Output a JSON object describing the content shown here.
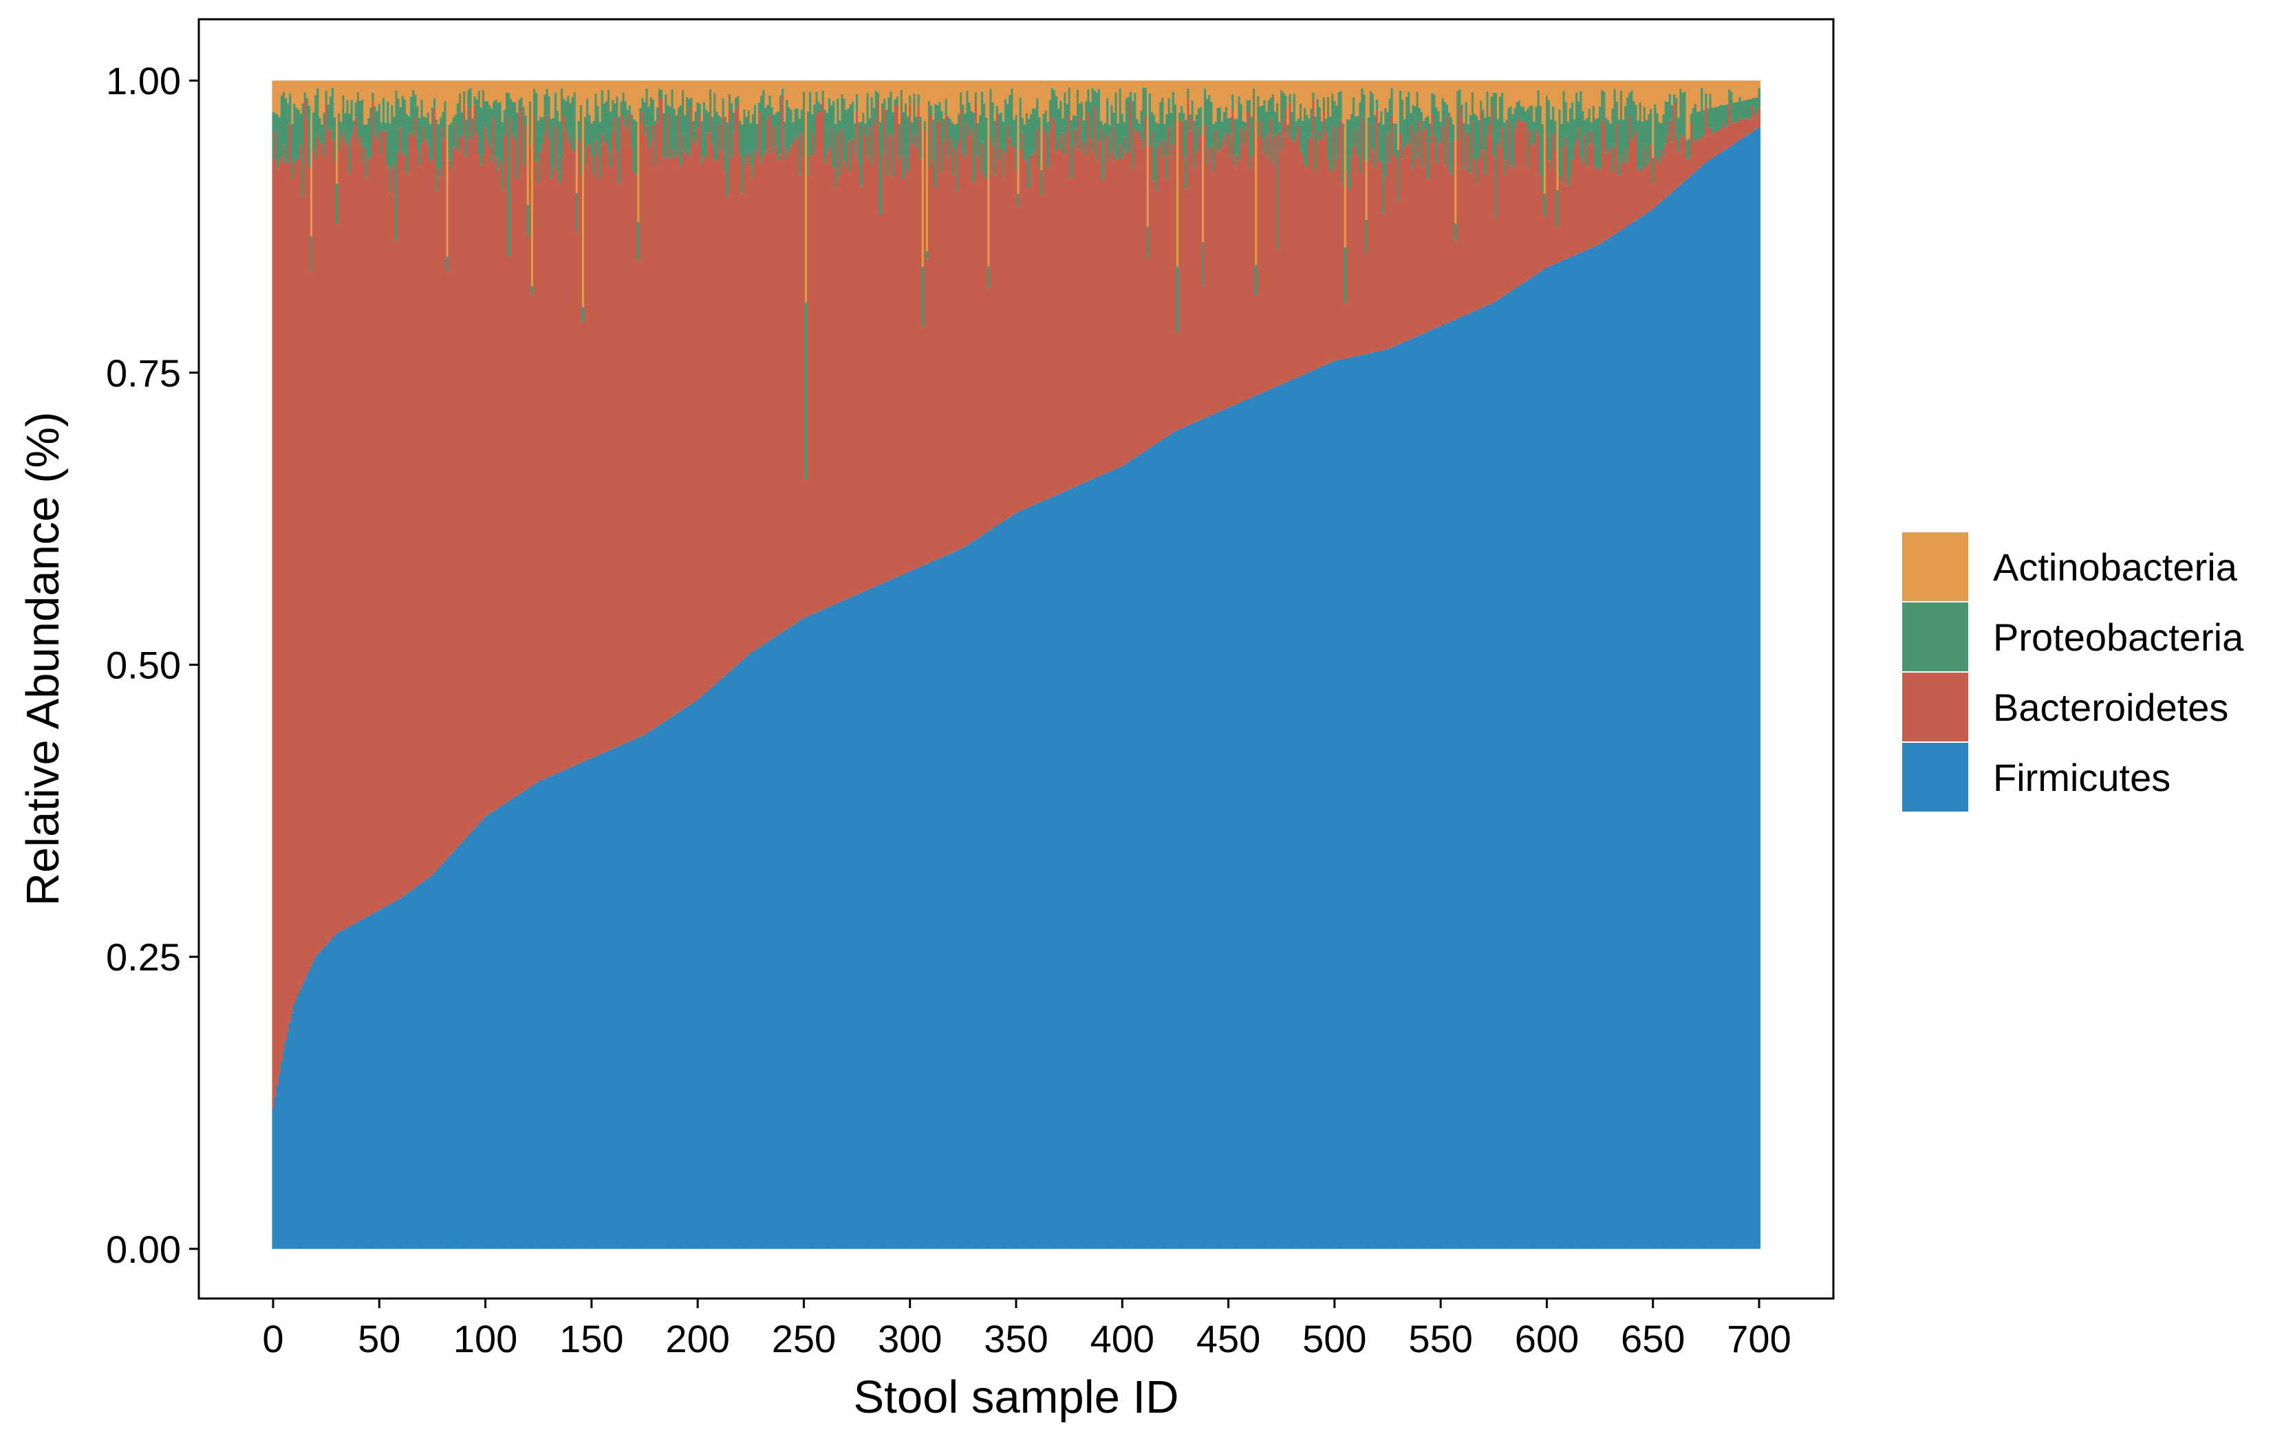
{
  "chart_data": {
    "type": "bar",
    "stacked": true,
    "xlabel": "Stool sample ID",
    "ylabel": "Relative Abundance (%)",
    "xlim": [
      -35,
      735
    ],
    "ylim": [
      -0.0425,
      1.0525
    ],
    "x_ticks": [
      0,
      50,
      100,
      150,
      200,
      250,
      300,
      350,
      400,
      450,
      500,
      550,
      600,
      650,
      700
    ],
    "y_ticks": [
      0.0,
      0.25,
      0.5,
      0.75,
      1.0
    ],
    "y_tick_labels": [
      "0.00",
      "0.25",
      "0.50",
      "0.75",
      "1.00"
    ],
    "n_samples": 701,
    "legend_position": "right",
    "grid": false,
    "series": [
      {
        "name": "Firmicutes",
        "color": "#2E86C1"
      },
      {
        "name": "Bacteroidetes",
        "color": "#C65E4E"
      },
      {
        "name": "Proteobacteria",
        "color": "#4A9670"
      },
      {
        "name": "Actinobacteria",
        "color": "#E49A4C"
      }
    ],
    "legend_order": [
      "Actinobacteria",
      "Proteobacteria",
      "Bacteroidetes",
      "Firmicutes"
    ],
    "firmicutes_profile": {
      "sample": [
        0,
        2,
        5,
        10,
        15,
        20,
        30,
        40,
        50,
        60,
        75,
        100,
        125,
        150,
        175,
        200,
        225,
        250,
        275,
        300,
        325,
        350,
        375,
        400,
        425,
        450,
        475,
        500,
        525,
        550,
        575,
        600,
        625,
        650,
        675,
        700
      ],
      "value": [
        0.12,
        0.14,
        0.17,
        0.21,
        0.23,
        0.25,
        0.27,
        0.28,
        0.29,
        0.3,
        0.32,
        0.37,
        0.4,
        0.42,
        0.44,
        0.47,
        0.51,
        0.54,
        0.56,
        0.58,
        0.6,
        0.63,
        0.65,
        0.67,
        0.7,
        0.72,
        0.74,
        0.76,
        0.77,
        0.79,
        0.81,
        0.84,
        0.86,
        0.89,
        0.93,
        0.96
      ]
    },
    "actinobacteria_mean": 0.02,
    "proteobacteria_mean": 0.03
  }
}
